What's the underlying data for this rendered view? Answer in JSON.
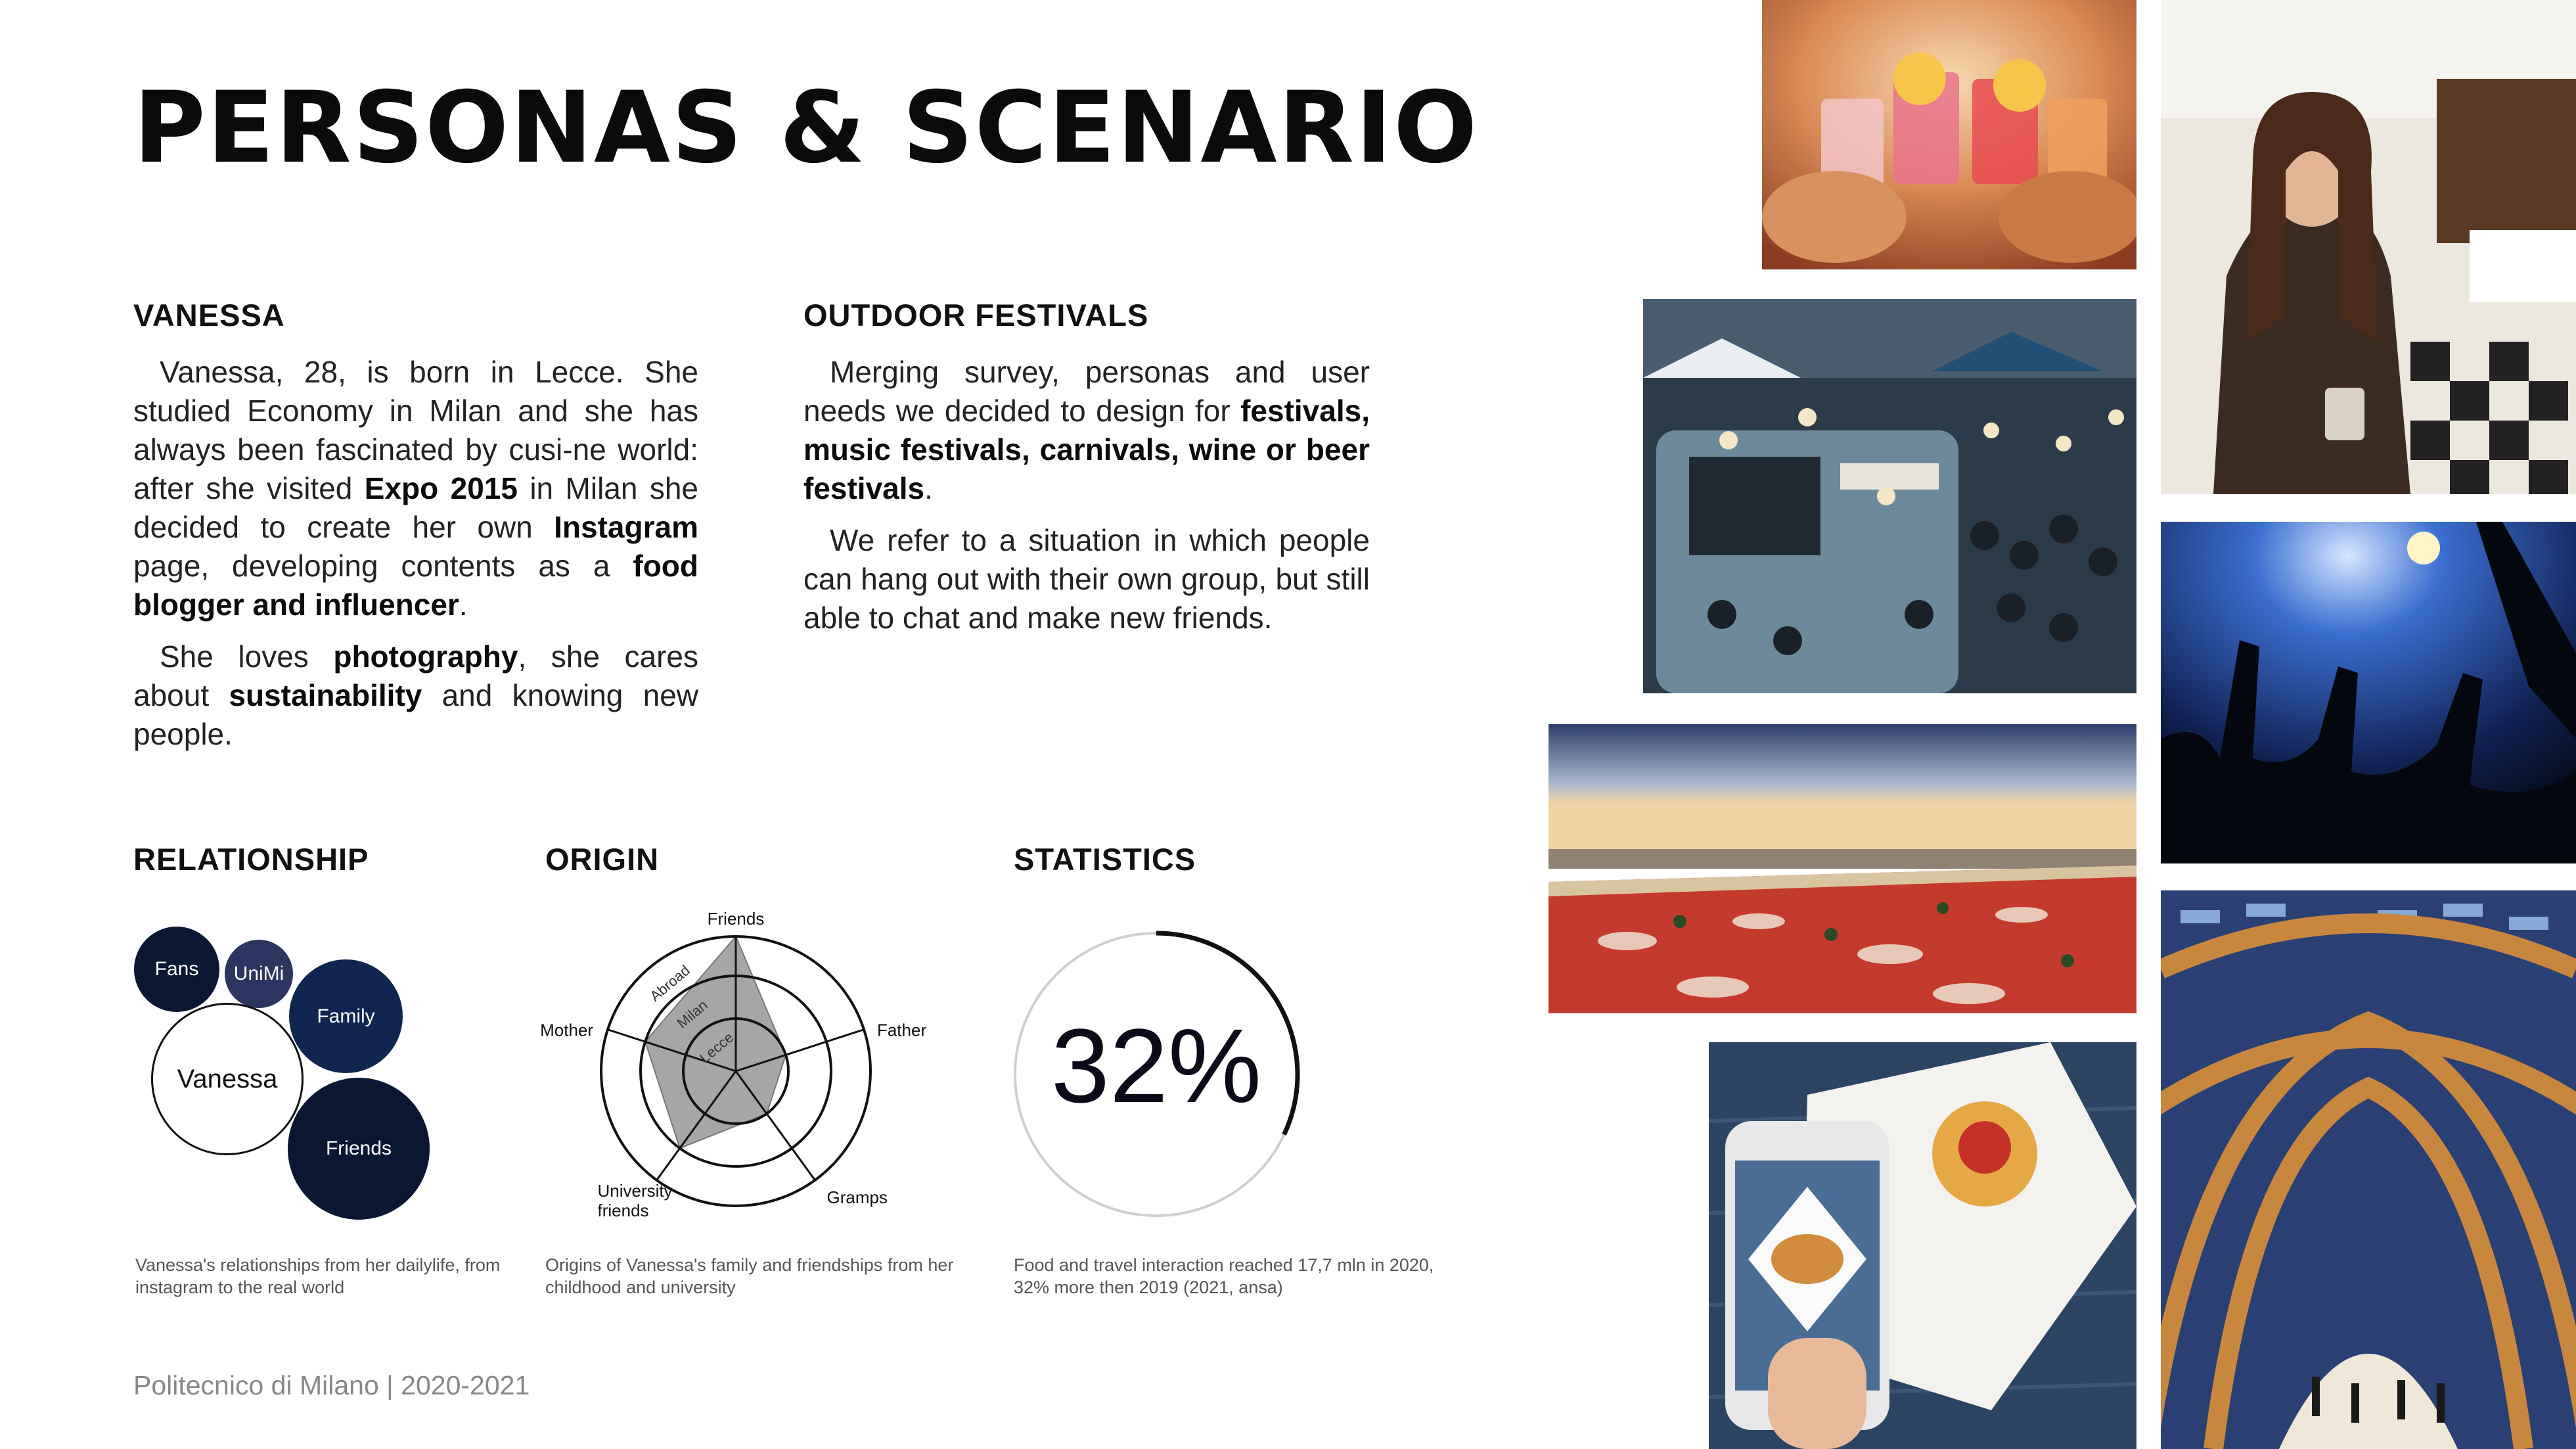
{
  "page": {
    "title": "PERSONAS & SCENARIO",
    "footer": "Politecnico di Milano | 2020-2021"
  },
  "persona": {
    "heading": "VANESSA",
    "p1": [
      {
        "t": "Vanessa, 28, is born in Lecce. She studied Economy in Milan and she has always been fascinated by cusi-ne world: after she visited ",
        "b": false
      },
      {
        "t": "Expo 2015",
        "b": true
      },
      {
        "t": " in Milan she decided to create her own ",
        "b": false
      },
      {
        "t": "Instagram",
        "b": true
      },
      {
        "t": " page, developing contents as a ",
        "b": false
      },
      {
        "t": "food  blogger and influencer",
        "b": true
      },
      {
        "t": ".",
        "b": false
      }
    ],
    "p2": [
      {
        "t": "She loves ",
        "b": false
      },
      {
        "t": "photography",
        "b": true
      },
      {
        "t": ", she cares about ",
        "b": false
      },
      {
        "t": "sustainability",
        "b": true
      },
      {
        "t": " and knowing new people.",
        "b": false
      }
    ]
  },
  "scenario": {
    "heading": "OUTDOOR FESTIVALS",
    "p1": [
      {
        "t": "Merging survey, personas and user needs we decided to design for ",
        "b": false
      },
      {
        "t": "festivals, music festivals, carnivals, wine or beer festivals",
        "b": true
      },
      {
        "t": ".",
        "b": false
      }
    ],
    "p2": [
      {
        "t": "We refer to a situation in which people can hang out with their own group, but still able to chat and make new friends.",
        "b": false
      }
    ]
  },
  "relationship": {
    "heading": "RELATIONSHIP",
    "bubbles": {
      "fans": "Fans",
      "unimi": "UniMi",
      "family": "Family",
      "vanessa": "Vanessa",
      "friends": "Friends"
    },
    "caption": "Vanessa's relationships from her dailylife, from instagram to the real world"
  },
  "origin": {
    "heading": "ORIGIN",
    "axes": [
      "Friends",
      "Father",
      "Gramps",
      "University friends",
      "Mother"
    ],
    "rings": [
      "Abroad",
      "Milan",
      "Lecce"
    ],
    "levels": [
      3,
      1,
      1,
      2,
      2
    ],
    "levels_note": "1 = Lecce, 2 = Milan, 3 = Abroad",
    "caption": "Origins of Vanessa's family and friendships from her childhood and university"
  },
  "statistics": {
    "heading": "STATISTICS",
    "value": "32%",
    "progress": 0.32,
    "caption": "Food and travel interaction reached 17,7 mln in 2020, 32% more then 2019 (2021, ansa)"
  },
  "photos": [
    "cocktails-photo",
    "cafe-portrait-photo",
    "food-truck-festival-photo",
    "concert-crowd-photo",
    "giant-pizza-seafront-photo",
    "phone-burger-photo",
    "expo-pavilion-photo"
  ],
  "colors": {
    "navy_dark": "#0b1633",
    "navy": "#102550",
    "slate": "#2c3560",
    "radar_fill": "#a7a5a8"
  }
}
